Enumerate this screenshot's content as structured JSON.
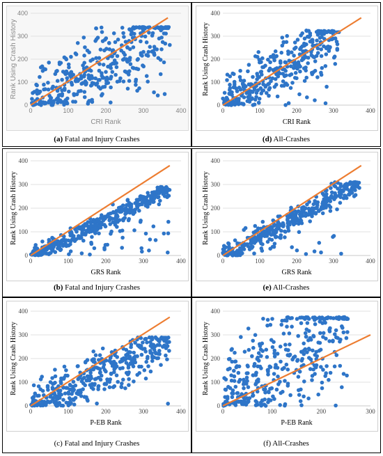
{
  "colors": {
    "points": "#2e75c8",
    "trend": "#ed7d31",
    "grid": "#d9d9d9"
  },
  "panels": [
    {
      "id": "a",
      "letter": "(a)",
      "text": " Fatal and Injury Crashes"
    },
    {
      "id": "d",
      "letter": "(d)",
      "text": " All-Crashes"
    },
    {
      "id": "b",
      "letter": "(b)",
      "text": " Fatal and Injury Crashes"
    },
    {
      "id": "e",
      "letter": "(e)",
      "text": " All-Crashes"
    },
    {
      "id": "c",
      "letter": "(c)",
      "text": " Fatal and Injury Crashes"
    },
    {
      "id": "f",
      "letter": "(f)",
      "text": " All-Crashes"
    }
  ],
  "chart_data": [
    {
      "panel": "a",
      "type": "scatter",
      "xlabel": "CRI Rank",
      "ylabel": "Rank Using Crash History",
      "xlim": [
        0,
        400
      ],
      "ylim": [
        0,
        400
      ],
      "xticks": [
        0,
        100,
        200,
        300,
        400
      ],
      "yticks": [
        0,
        100,
        200,
        300,
        400
      ],
      "trend": [
        [
          0,
          0
        ],
        [
          365,
          380
        ]
      ],
      "seed": 11,
      "n": 380,
      "xmax": 370,
      "ymax": 340,
      "ycap": 340,
      "spread": 0.55,
      "bias": 0.05
    },
    {
      "panel": "d",
      "type": "scatter",
      "xlabel": "CRI Rank",
      "ylabel": "Rank Using Crash History",
      "xlim": [
        0,
        400
      ],
      "ylim": [
        0,
        400
      ],
      "xticks": [
        0,
        100,
        200,
        300,
        400
      ],
      "yticks": [
        0,
        100,
        200,
        300,
        400
      ],
      "trend": [
        [
          0,
          0
        ],
        [
          375,
          380
        ]
      ],
      "seed": 23,
      "n": 360,
      "xmax": 315,
      "ymax": 325,
      "ycap": 325,
      "spread": 0.38,
      "bias": 0.05
    },
    {
      "panel": "b",
      "type": "scatter",
      "xlabel": "GRS Rank",
      "ylabel": "Rank Using Crash History",
      "xlim": [
        0,
        400
      ],
      "ylim": [
        0,
        400
      ],
      "xticks": [
        0,
        100,
        200,
        300,
        400
      ],
      "yticks": [
        0,
        100,
        200,
        300,
        400
      ],
      "trend": [
        [
          0,
          0
        ],
        [
          370,
          380
        ]
      ],
      "seed": 37,
      "n": 420,
      "xmax": 370,
      "ymax": 290,
      "ycap": 290,
      "spread": 0.12,
      "bias": -0.12
    },
    {
      "panel": "e",
      "type": "scatter",
      "xlabel": "GRS Rank",
      "ylabel": "Rank Using Crash History",
      "xlim": [
        0,
        400
      ],
      "ylim": [
        0,
        400
      ],
      "xticks": [
        0,
        100,
        200,
        300,
        400
      ],
      "yticks": [
        0,
        100,
        200,
        300,
        400
      ],
      "trend": [
        [
          0,
          0
        ],
        [
          375,
          380
        ]
      ],
      "seed": 41,
      "n": 400,
      "xmax": 370,
      "ymax": 310,
      "ycap": 310,
      "spread": 0.16,
      "bias": -0.08
    },
    {
      "panel": "c",
      "type": "scatter",
      "xlabel": "P-EB Rank",
      "ylabel": "Rank Using Crash History",
      "xlim": [
        0,
        400
      ],
      "ylim": [
        0,
        400
      ],
      "xticks": [
        0,
        100,
        200,
        300,
        400
      ],
      "yticks": [
        0,
        100,
        200,
        300,
        400
      ],
      "trend": [
        [
          0,
          0
        ],
        [
          370,
          375
        ]
      ],
      "seed": 53,
      "n": 400,
      "xmax": 370,
      "ymax": 290,
      "ycap": 290,
      "spread": 0.35,
      "bias": -0.05
    },
    {
      "panel": "f",
      "type": "scatter",
      "xlabel": "P-EB Rank",
      "ylabel": "Rank Using Crash History",
      "xlim": [
        0,
        300
      ],
      "ylim": [
        0,
        400
      ],
      "xticks": [
        0,
        100,
        200,
        300
      ],
      "yticks": [
        0,
        100,
        200,
        300,
        400
      ],
      "trend": [
        [
          0,
          0
        ],
        [
          300,
          300
        ]
      ],
      "seed": 67,
      "n": 380,
      "xmax": 255,
      "ymax": 375,
      "ycap": 375,
      "spread": 0.65,
      "bias": 0.25
    }
  ]
}
